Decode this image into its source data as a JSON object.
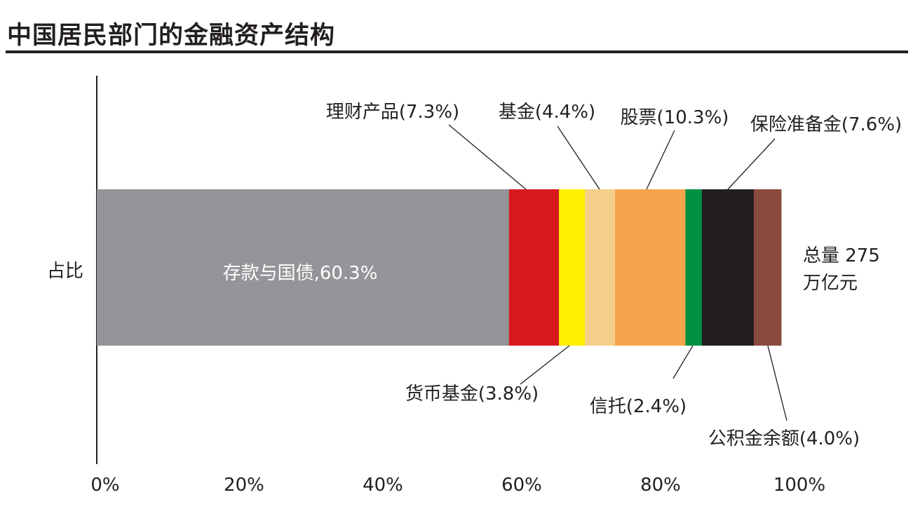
{
  "chart_data": {
    "type": "bar",
    "orientation": "horizontal-stacked",
    "title": "中国居民部门的金融资产结构",
    "category": "占比",
    "xlim": [
      0,
      100
    ],
    "x_ticks": [
      "0%",
      "20%",
      "40%",
      "60%",
      "80%",
      "100%"
    ],
    "series": [
      {
        "name": "存款与国债",
        "value": 60.3,
        "label": "存款与国债,60.3%",
        "color": "#939598"
      },
      {
        "name": "理财产品",
        "value": 7.3,
        "label": "理财产品(7.3%)",
        "color": "#d7191f"
      },
      {
        "name": "货币基金",
        "value": 3.8,
        "label": "货币基金(3.8%)",
        "color": "#fff100"
      },
      {
        "name": "基金",
        "value": 4.4,
        "label": "基金(4.4%)",
        "color": "#f5d08b"
      },
      {
        "name": "股票",
        "value": 10.3,
        "label": "股票(10.3%)",
        "color": "#f6a44c"
      },
      {
        "name": "信托",
        "value": 2.4,
        "label": "信托(2.4%)",
        "color": "#009144"
      },
      {
        "name": "保险准备金",
        "value": 7.6,
        "label": "保险准备金(7.6%)",
        "color": "#231f20"
      },
      {
        "name": "公积金余额",
        "value": 4.0,
        "label": "公积金余额(4.0%)",
        "color": "#8b4b3f"
      }
    ],
    "total_label": [
      "总量 275",
      "万亿元"
    ]
  }
}
